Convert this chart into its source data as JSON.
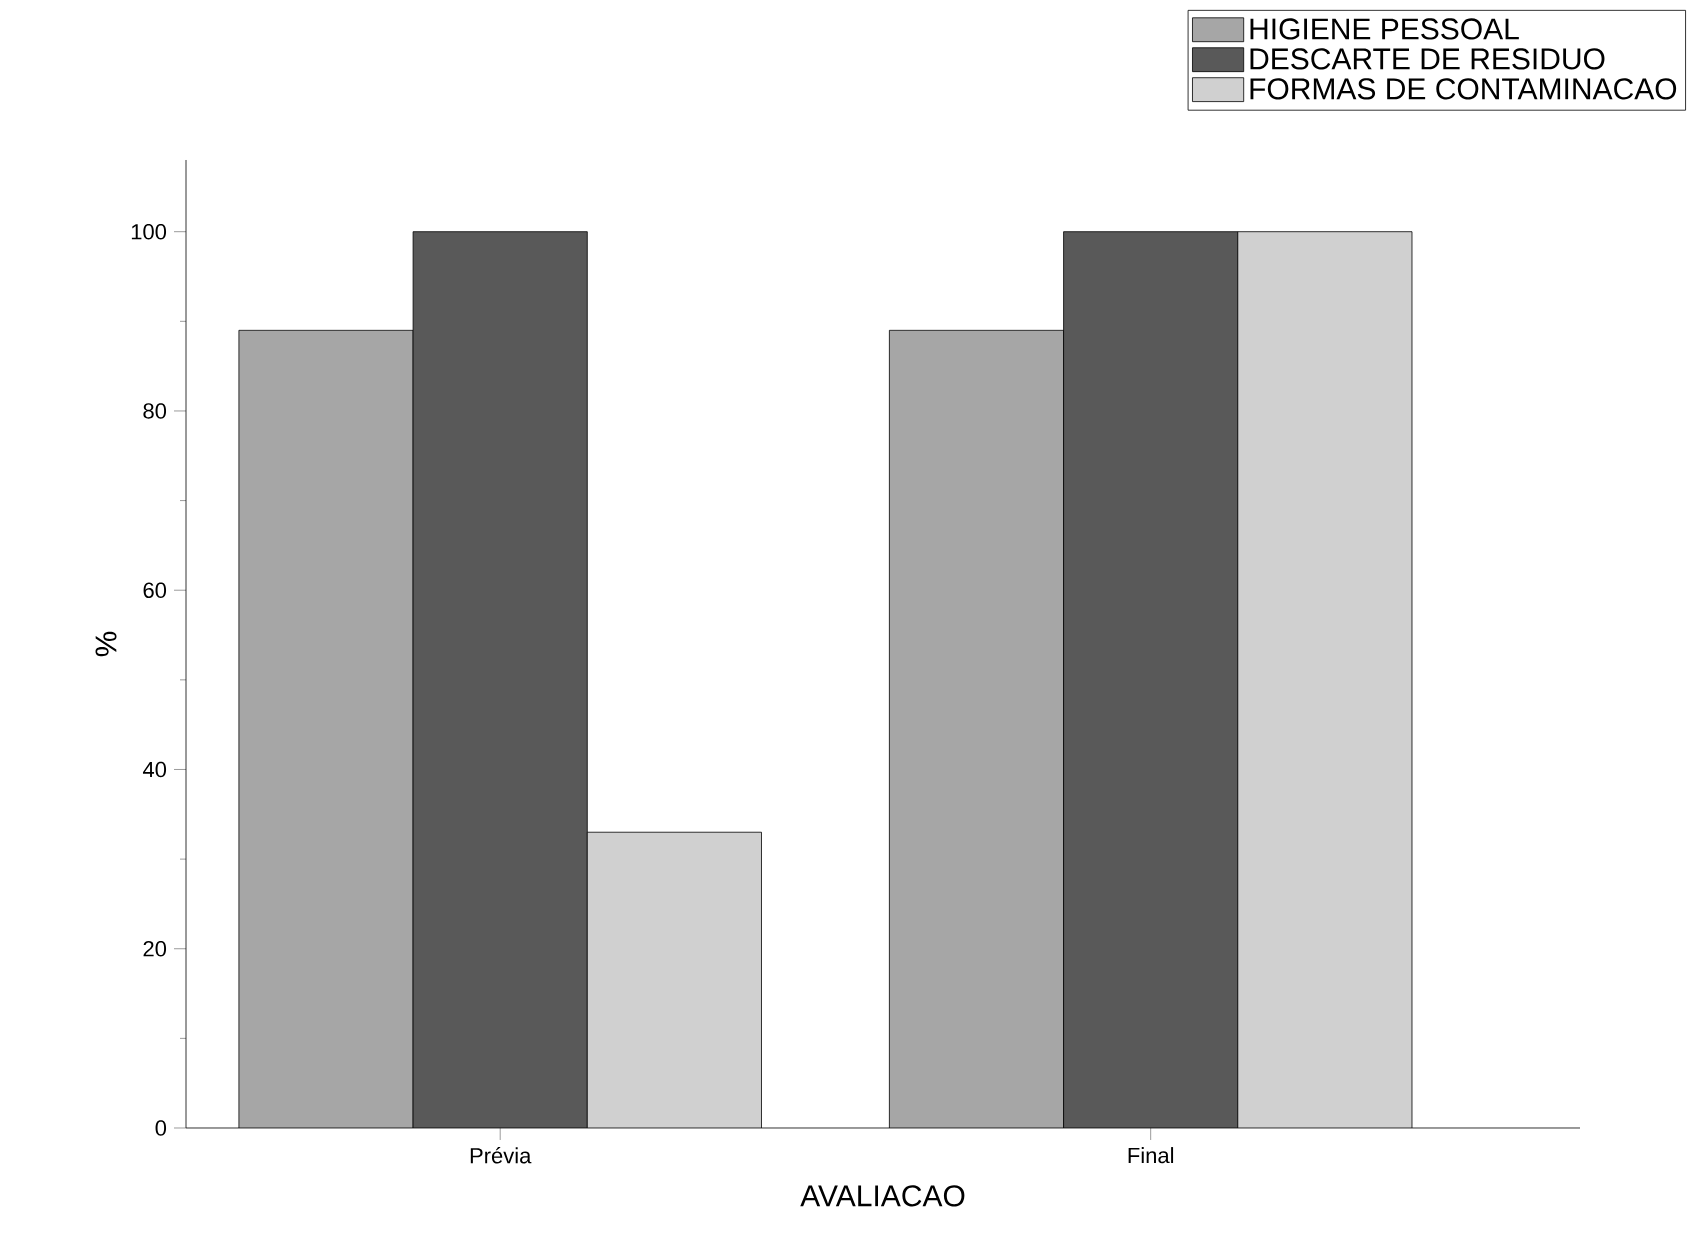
{
  "chart_data": {
    "type": "bar",
    "xlabel": "AVALIACAO",
    "ylabel": "%",
    "categories": [
      "Prévia",
      "Final"
    ],
    "series": [
      {
        "name": "HIGIENE PESSOAL",
        "color": "#a6a6a6",
        "values": [
          89,
          89
        ]
      },
      {
        "name": "DESCARTE DE RESIDUO",
        "color": "#595959",
        "values": [
          100,
          100
        ]
      },
      {
        "name": "FORMAS DE CONTAMINACAO",
        "color": "#d0d0d0",
        "values": [
          33,
          100
        ]
      }
    ],
    "ylim": [
      0,
      108
    ],
    "yticks": [
      0,
      20,
      40,
      60,
      80,
      100
    ],
    "grid": false,
    "legend": "top right"
  }
}
